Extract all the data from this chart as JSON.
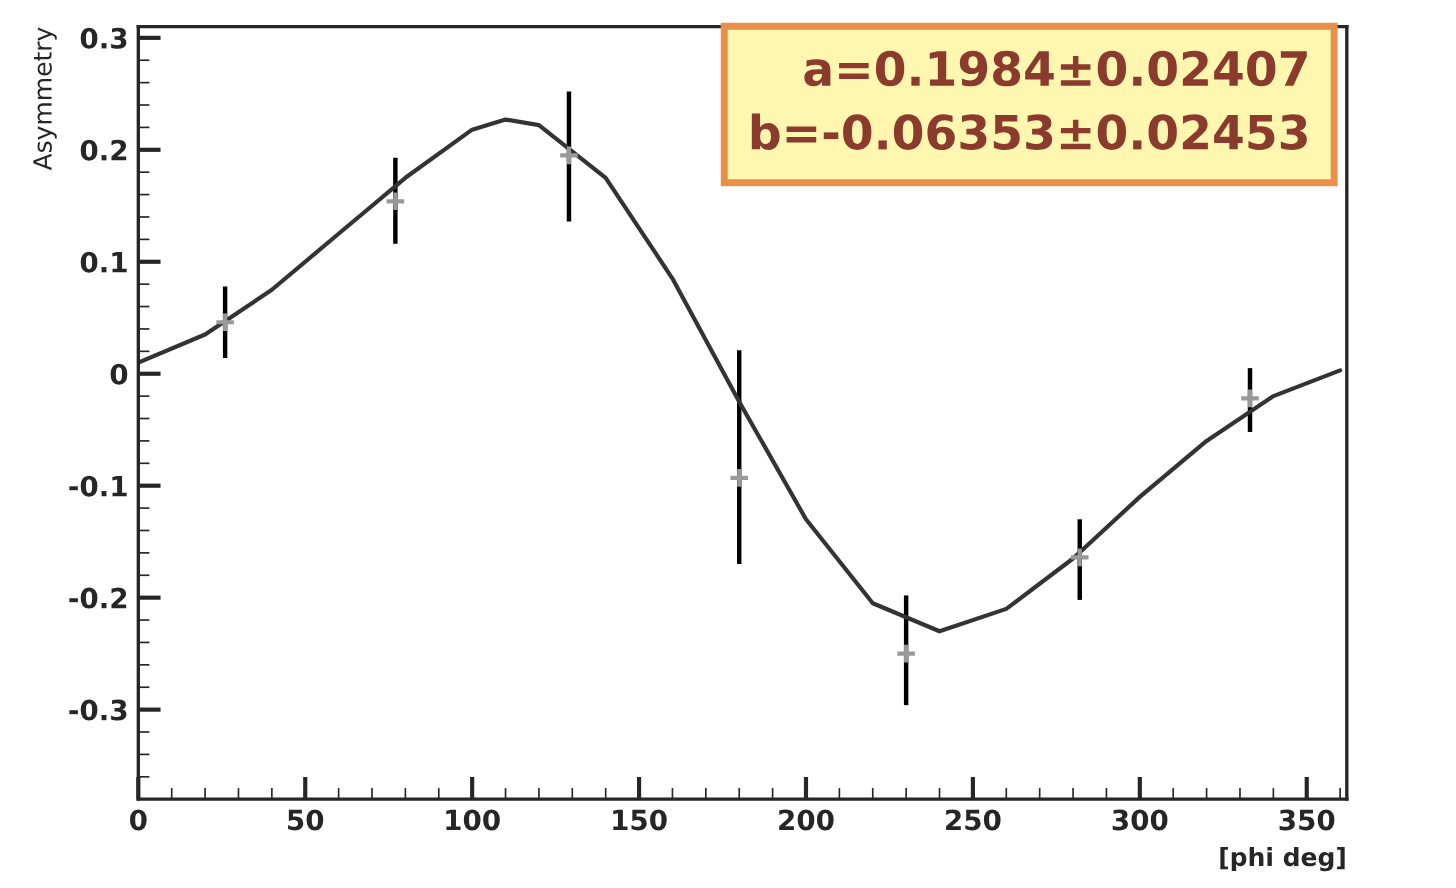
{
  "chart_data": {
    "type": "scatter",
    "ylabel": "Asymmetry",
    "xlabel": "[phi deg]",
    "annotations": [
      "a=0.1984±0.02407\nb=-0.06353±0.02453"
    ],
    "xlim": [
      0,
      362
    ],
    "xticks": [
      0,
      50,
      100,
      150,
      200,
      250,
      300,
      350
    ],
    "ylim": [
      -0.38,
      0.31
    ],
    "yticks": [
      -0.3,
      -0.2,
      -0.1,
      0,
      0.1,
      0.2,
      0.3
    ],
    "grid": false,
    "legend": false,
    "series": [
      {
        "color": "#999999",
        "marker": "cross",
        "x": [
          26,
          77,
          129,
          180,
          230,
          282,
          333
        ],
        "values": [
          0.046,
          0.154,
          0.195,
          -0.093,
          -0.25,
          -0.164,
          -0.022
        ],
        "errors": [
          [
            0.014,
            0.078
          ],
          [
            0.116,
            0.193
          ],
          [
            0.136,
            0.252
          ],
          [
            -0.17,
            0.021
          ],
          [
            -0.296,
            -0.198
          ],
          [
            -0.202,
            -0.13
          ],
          [
            -0.052,
            0.005
          ]
        ]
      },
      {
        "type": "line",
        "color": "#333333",
        "marker": "none",
        "line_style": "solid",
        "x": [
          0,
          20,
          40,
          60,
          80,
          100,
          110,
          120,
          140,
          160,
          180,
          200,
          220,
          240,
          260,
          280,
          300,
          320,
          340,
          360
        ],
        "values": [
          0.01,
          0.035,
          0.075,
          0.125,
          0.175,
          0.218,
          0.227,
          0.222,
          0.175,
          0.085,
          -0.025,
          -0.13,
          -0.205,
          -0.23,
          -0.21,
          -0.165,
          -0.11,
          -0.06,
          -0.02,
          0.003
        ]
      }
    ]
  }
}
